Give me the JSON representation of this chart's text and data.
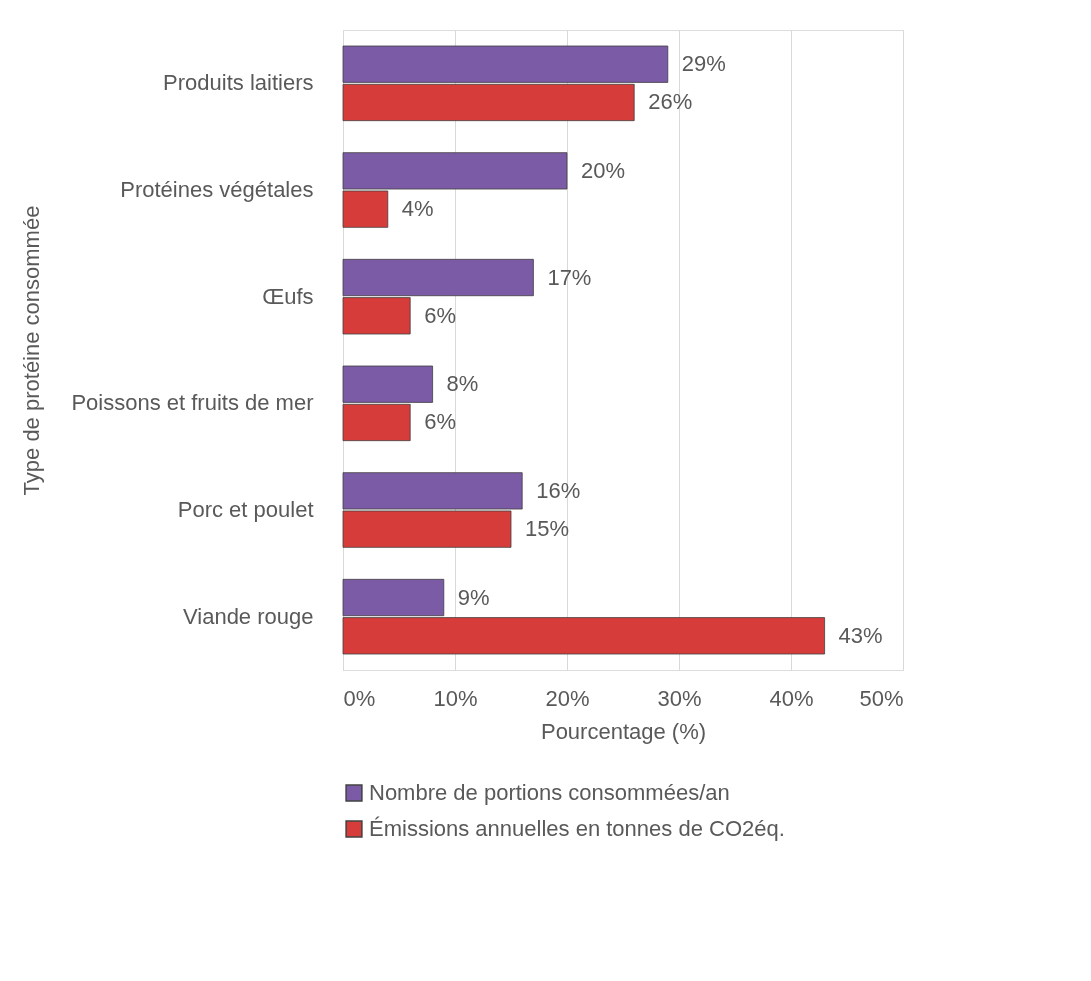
{
  "chart_data": {
    "type": "bar",
    "orientation": "horizontal",
    "xlabel": "Pourcentage (%)",
    "ylabel": "Type de protéine consommée",
    "categories": [
      "Produits laitiers",
      "Protéines végétales",
      "Œufs",
      "Poissons et fruits de mer",
      "Porc et poulet",
      "Viande rouge"
    ],
    "series": [
      {
        "name": "Nombre de portions consommées/an",
        "color": "#7b5aa6",
        "values": [
          29,
          20,
          17,
          8,
          16,
          9
        ],
        "value_labels": [
          "29%",
          "20%",
          "17%",
          "8%",
          "16%",
          "9%"
        ]
      },
      {
        "name": "Émissions annuelles en tonnes de CO2éq.",
        "color": "#d63c3a",
        "values": [
          26,
          4,
          6,
          6,
          15,
          43
        ],
        "value_labels": [
          "26%",
          "4%",
          "6%",
          "6%",
          "15%",
          "43%"
        ]
      }
    ],
    "xlim": [
      0,
      50
    ],
    "xticks": [
      {
        "value": 0,
        "label": "0%"
      },
      {
        "value": 10,
        "label": "10%"
      },
      {
        "value": 20,
        "label": "20%"
      },
      {
        "value": 30,
        "label": "30%"
      },
      {
        "value": 40,
        "label": "40%"
      },
      {
        "value": 50,
        "label": "50%"
      }
    ],
    "grid": "x",
    "legend": "bottom"
  }
}
